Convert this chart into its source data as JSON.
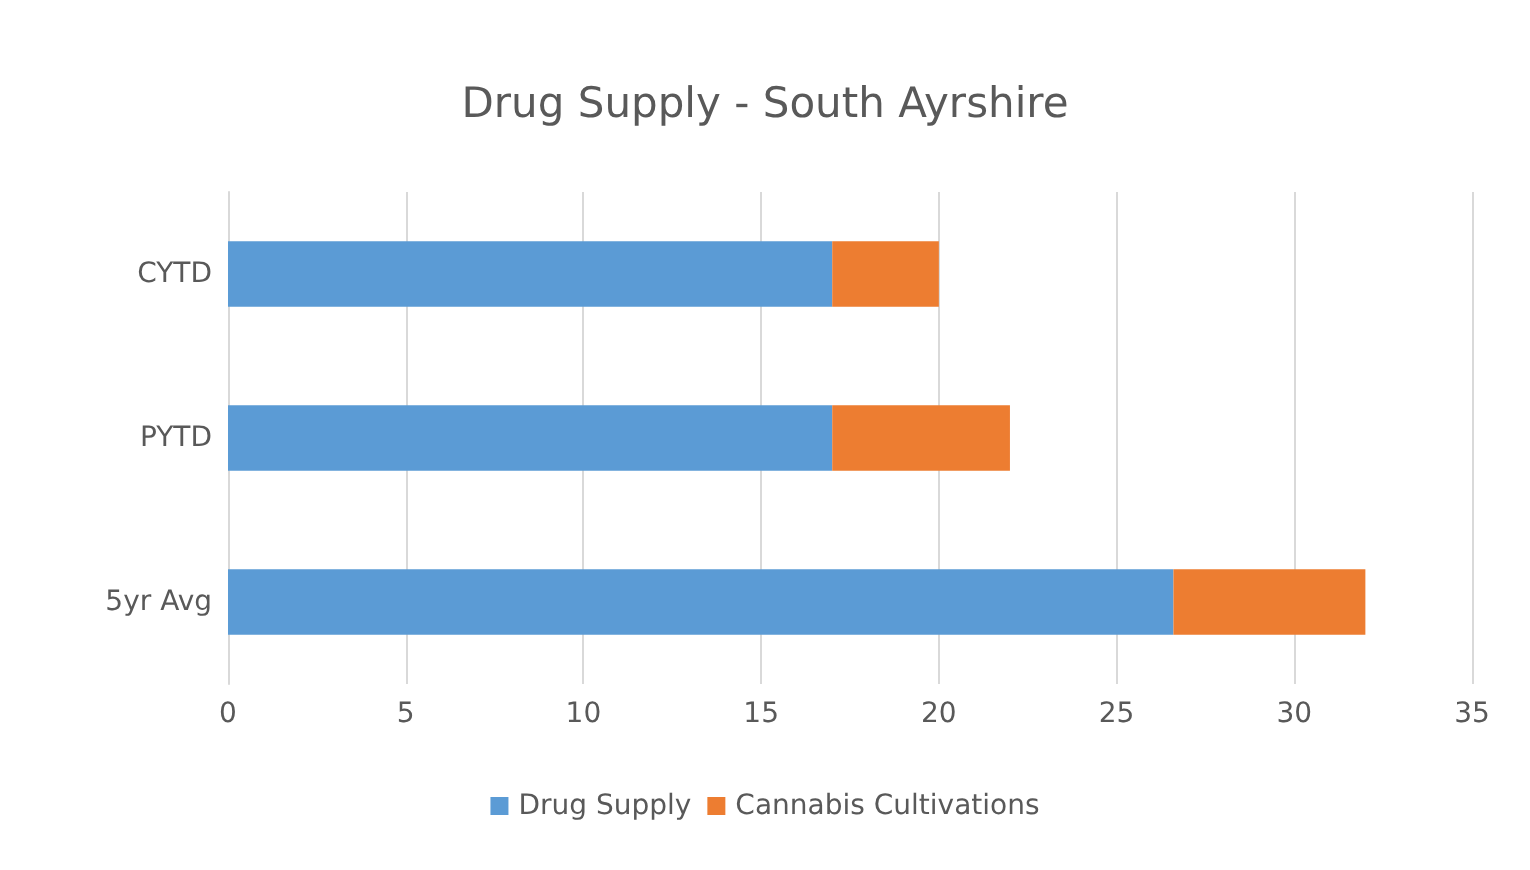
{
  "chart_data": {
    "type": "bar",
    "orientation": "horizontal",
    "stacked": true,
    "title": "Drug Supply - South Ayrshire",
    "categories": [
      "CYTD",
      "PYTD",
      "5yr Avg"
    ],
    "series": [
      {
        "name": "Drug Supply",
        "color": "#5b9bd5",
        "values": [
          17,
          17,
          26.6
        ]
      },
      {
        "name": "Cannabis Cultivations",
        "color": "#ed7d31",
        "values": [
          3,
          5,
          5.4
        ]
      }
    ],
    "xlim": [
      0,
      35
    ],
    "xticks": [
      0,
      5,
      10,
      15,
      20,
      25,
      30,
      35
    ],
    "grid": "x",
    "legend": "bottom"
  }
}
